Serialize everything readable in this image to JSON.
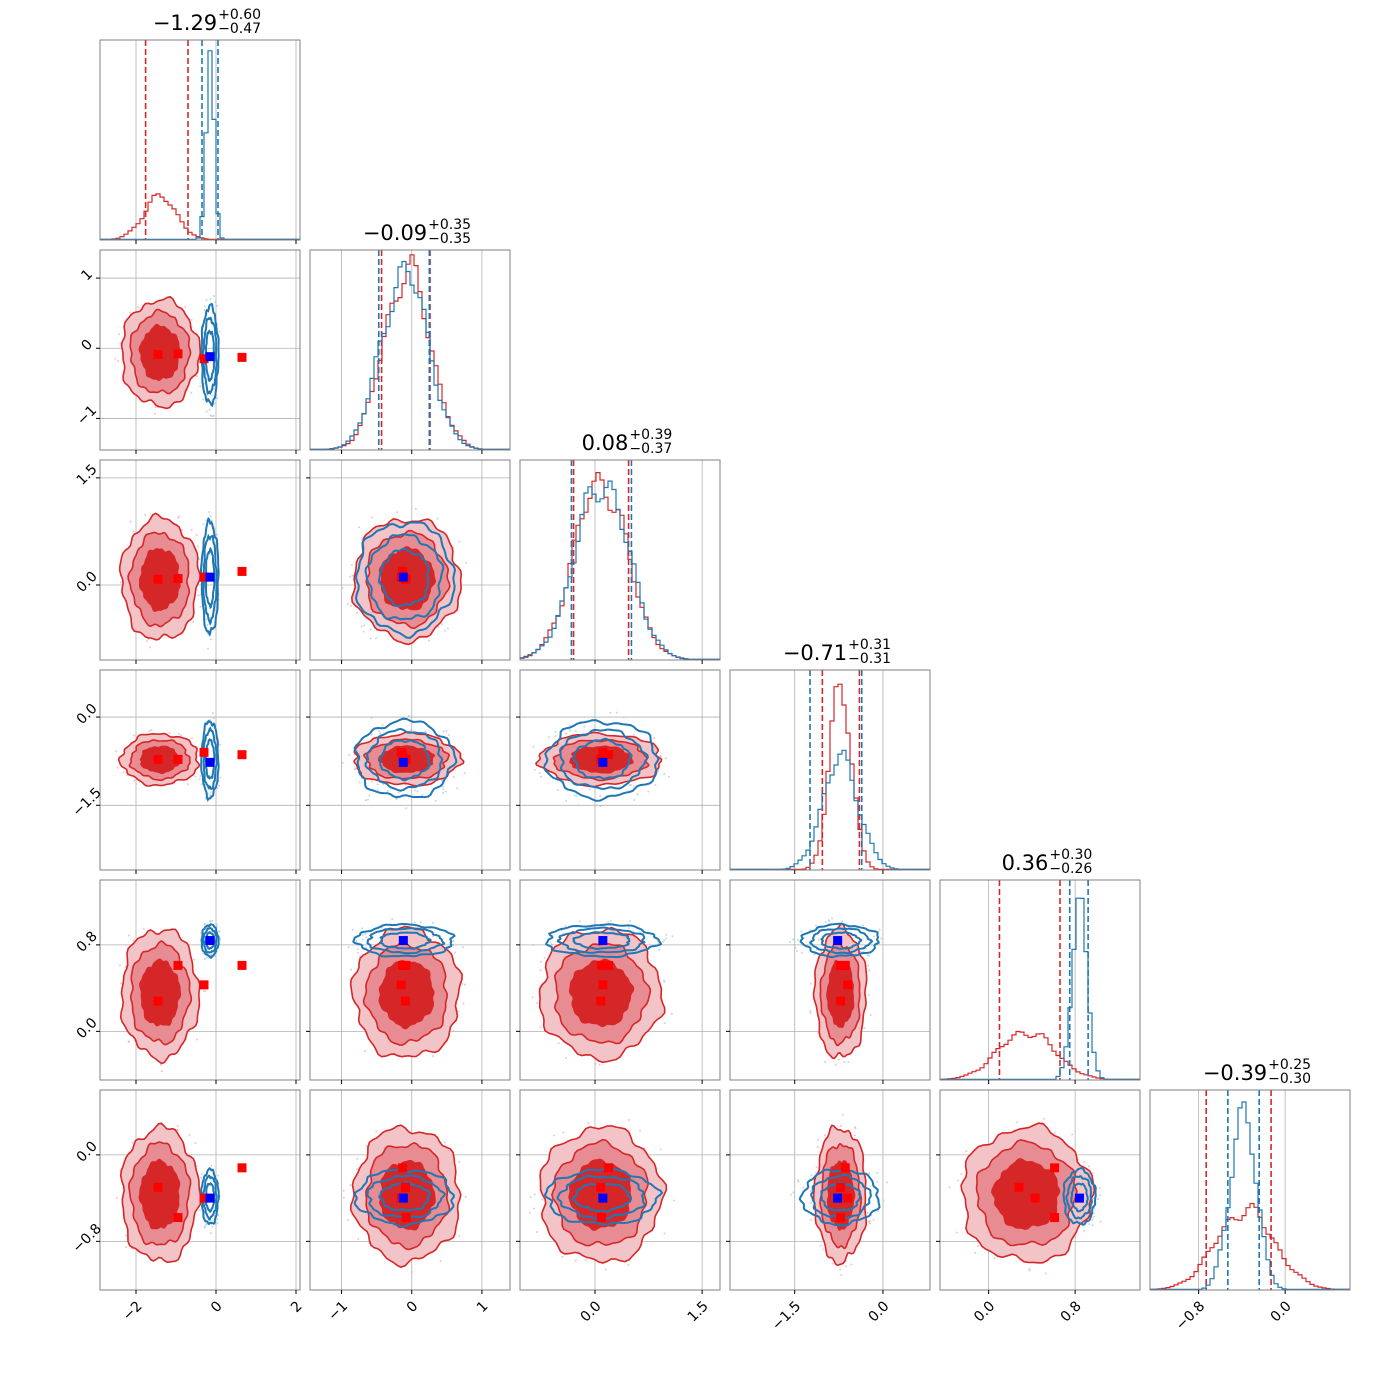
{
  "chart_data": {
    "type": "corner",
    "n_params": 6,
    "colors": {
      "posterior_a": "#d62728",
      "posterior_b": "#1f77b4",
      "marker_a": "#ff0000",
      "marker_b": "#0000ff"
    },
    "grid": true,
    "titles": [
      {
        "median": "−1.29",
        "plus": "+0.60",
        "minus": "−0.47"
      },
      {
        "median": "−0.09",
        "plus": "+0.35",
        "minus": "−0.35"
      },
      {
        "median": "0.08",
        "plus": "+0.39",
        "minus": "−0.37"
      },
      {
        "median": "−0.71",
        "plus": "+0.31",
        "minus": "−0.31"
      },
      {
        "median": "0.36",
        "plus": "+0.30",
        "minus": "−0.26"
      },
      {
        "median": "−0.39",
        "plus": "+0.25",
        "minus": "−0.30"
      }
    ],
    "ranges": [
      [
        -2.9,
        2.1
      ],
      [
        -1.45,
        1.4
      ],
      [
        -1.05,
        1.75
      ],
      [
        -2.6,
        0.8
      ],
      [
        -0.45,
        1.4
      ],
      [
        -1.25,
        0.6
      ]
    ],
    "ticks": [
      {
        "values": [
          -2,
          0,
          2
        ],
        "labels": [
          "−2",
          "0",
          "2"
        ]
      },
      {
        "values": [
          -1,
          0,
          1
        ],
        "labels": [
          "−1",
          "0",
          "1"
        ]
      },
      {
        "values": [
          0.0,
          1.5
        ],
        "labels": [
          "0.0",
          "1.5"
        ]
      },
      {
        "values": [
          -1.5,
          0.0
        ],
        "labels": [
          "−1.5",
          "0.0"
        ]
      },
      {
        "values": [
          0.0,
          0.8
        ],
        "labels": [
          "0.0",
          "0.8"
        ]
      },
      {
        "values": [
          -0.8,
          0.0
        ],
        "labels": [
          "−0.8",
          "0.0"
        ]
      }
    ],
    "posterior_a": {
      "name": "",
      "mean": [
        -1.4,
        -0.07,
        0.08,
        -0.72,
        0.35,
        -0.37
      ],
      "sd": [
        0.42,
        0.33,
        0.37,
        0.19,
        0.26,
        0.27
      ],
      "quantiles": [
        [
          -1.76,
          -0.7
        ],
        [
          -0.43,
          0.26
        ],
        [
          -0.3,
          0.47
        ],
        [
          -1.03,
          -0.4
        ],
        [
          0.1,
          0.66
        ],
        [
          -0.73,
          -0.13
        ]
      ]
    },
    "posterior_b": {
      "name": "",
      "mean": [
        -0.15,
        -0.1,
        0.1,
        -0.72,
        0.84,
        -0.39
      ],
      "sd": [
        0.1,
        0.33,
        0.37,
        0.31,
        0.07,
        0.12
      ],
      "quantiles": [
        [
          -0.35,
          0.05
        ],
        [
          -0.47,
          0.25
        ],
        [
          -0.33,
          0.51
        ],
        [
          -1.24,
          -0.36
        ],
        [
          0.75,
          0.92
        ],
        [
          -0.53,
          -0.24
        ]
      ]
    },
    "markers_a": [
      [
        -1.45,
        -0.09,
        0.08,
        -0.72,
        0.28,
        -0.3
      ],
      [
        -0.95,
        -0.08,
        0.09,
        -0.72,
        0.61,
        -0.58
      ],
      [
        -0.3,
        -0.15,
        0.11,
        -0.6,
        0.43,
        -0.4
      ],
      [
        0.65,
        -0.13,
        0.19,
        -0.64,
        0.61,
        -0.12
      ]
    ],
    "markers_b": [
      [
        -0.15,
        -0.12,
        0.11,
        -0.77,
        0.84,
        -0.4
      ]
    ]
  }
}
